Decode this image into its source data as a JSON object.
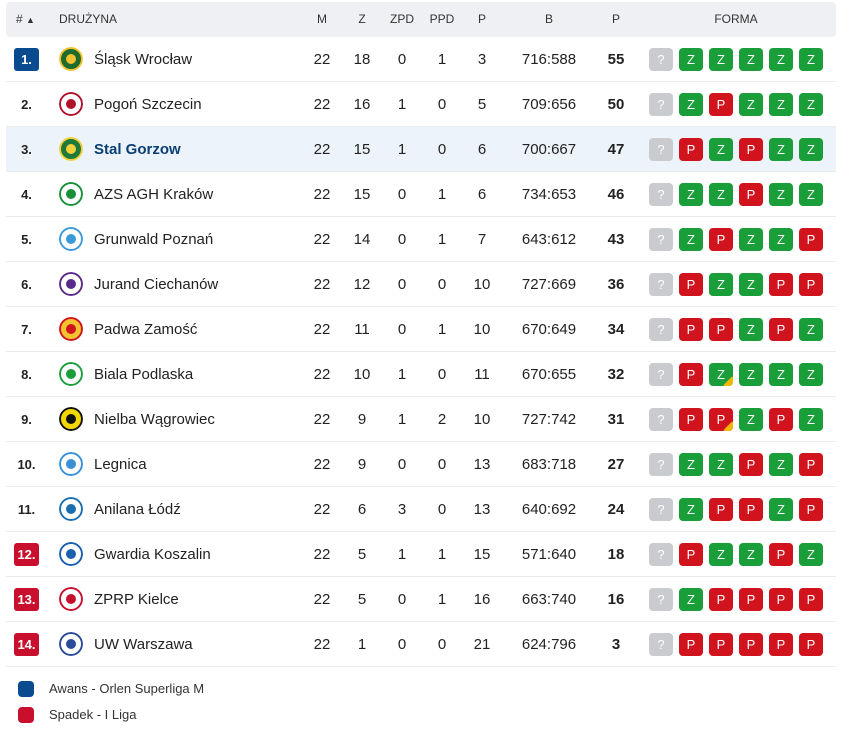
{
  "header": {
    "rank": "#",
    "sort_icon": "▲",
    "team": "DRUŻYNA",
    "m": "M",
    "z": "Z",
    "zpd": "ZPD",
    "ppd": "PPD",
    "p": "P",
    "b": "B",
    "pts": "P",
    "forma": "FORMA"
  },
  "colors": {
    "promotion": "#0a4a8f",
    "relegation": "#c8102e",
    "win": "#1a9e3a",
    "loss": "#d1131e",
    "unknown": "#c9cbce"
  },
  "rows": [
    {
      "rank": "1.",
      "team": "Śląsk Wrocław",
      "m": "22",
      "z": "18",
      "zpd": "0",
      "ppd": "1",
      "p": "3",
      "b": "716:588",
      "pts": "55",
      "form": [
        "?",
        "Z",
        "Z",
        "Z",
        "Z",
        "Z"
      ],
      "rank_type": "blue",
      "logo": "slask-logo"
    },
    {
      "rank": "2.",
      "team": "Pogoń Szczecin",
      "m": "22",
      "z": "16",
      "zpd": "1",
      "ppd": "0",
      "p": "5",
      "b": "709:656",
      "pts": "50",
      "form": [
        "?",
        "Z",
        "P",
        "Z",
        "Z",
        "Z"
      ],
      "rank_type": "",
      "logo": "pogon-logo"
    },
    {
      "rank": "3.",
      "team": "Stal Gorzow",
      "m": "22",
      "z": "15",
      "zpd": "1",
      "ppd": "0",
      "p": "6",
      "b": "700:667",
      "pts": "47",
      "form": [
        "?",
        "P",
        "Z",
        "P",
        "Z",
        "Z"
      ],
      "rank_type": "",
      "logo": "stal-logo",
      "highlight": true
    },
    {
      "rank": "4.",
      "team": "AZS AGH Kraków",
      "m": "22",
      "z": "15",
      "zpd": "0",
      "ppd": "1",
      "p": "6",
      "b": "734:653",
      "pts": "46",
      "form": [
        "?",
        "Z",
        "Z",
        "P",
        "Z",
        "Z"
      ],
      "rank_type": "",
      "logo": "azs-agh-logo"
    },
    {
      "rank": "5.",
      "team": "Grunwald Poznań",
      "m": "22",
      "z": "14",
      "zpd": "0",
      "ppd": "1",
      "p": "7",
      "b": "643:612",
      "pts": "43",
      "form": [
        "?",
        "Z",
        "P",
        "Z",
        "Z",
        "P"
      ],
      "rank_type": "",
      "logo": "grunwald-logo"
    },
    {
      "rank": "6.",
      "team": "Jurand Ciechanów",
      "m": "22",
      "z": "12",
      "zpd": "0",
      "ppd": "0",
      "p": "10",
      "b": "727:669",
      "pts": "36",
      "form": [
        "?",
        "P",
        "Z",
        "Z",
        "P",
        "P"
      ],
      "rank_type": "",
      "logo": "jurand-logo"
    },
    {
      "rank": "7.",
      "team": "Padwa Zamość",
      "m": "22",
      "z": "11",
      "zpd": "0",
      "ppd": "1",
      "p": "10",
      "b": "670:649",
      "pts": "34",
      "form": [
        "?",
        "P",
        "P",
        "Z",
        "P",
        "Z"
      ],
      "rank_type": "",
      "logo": "padwa-logo"
    },
    {
      "rank": "8.",
      "team": "Biala Podlaska",
      "m": "22",
      "z": "10",
      "zpd": "1",
      "ppd": "0",
      "p": "11",
      "b": "670:655",
      "pts": "32",
      "form": [
        "?",
        "P",
        "Z",
        "Z",
        "Z",
        "Z"
      ],
      "rank_type": "",
      "logo": "biala-logo",
      "marked": 2
    },
    {
      "rank": "9.",
      "team": "Nielba Wągrowiec",
      "m": "22",
      "z": "9",
      "zpd": "1",
      "ppd": "2",
      "p": "10",
      "b": "727:742",
      "pts": "31",
      "form": [
        "?",
        "P",
        "P",
        "Z",
        "P",
        "Z"
      ],
      "rank_type": "",
      "logo": "nielba-logo",
      "marked": 2
    },
    {
      "rank": "10.",
      "team": "Legnica",
      "m": "22",
      "z": "9",
      "zpd": "0",
      "ppd": "0",
      "p": "13",
      "b": "683:718",
      "pts": "27",
      "form": [
        "?",
        "Z",
        "Z",
        "P",
        "Z",
        "P"
      ],
      "rank_type": "",
      "logo": "legnica-logo"
    },
    {
      "rank": "11.",
      "team": "Anilana Łódź",
      "m": "22",
      "z": "6",
      "zpd": "3",
      "ppd": "0",
      "p": "13",
      "b": "640:692",
      "pts": "24",
      "form": [
        "?",
        "Z",
        "P",
        "P",
        "Z",
        "P"
      ],
      "rank_type": "",
      "logo": "anilana-logo"
    },
    {
      "rank": "12.",
      "team": "Gwardia Koszalin",
      "m": "22",
      "z": "5",
      "zpd": "1",
      "ppd": "1",
      "p": "15",
      "b": "571:640",
      "pts": "18",
      "form": [
        "?",
        "P",
        "Z",
        "Z",
        "P",
        "Z"
      ],
      "rank_type": "red",
      "logo": "gwardia-logo"
    },
    {
      "rank": "13.",
      "team": "ZPRP Kielce",
      "m": "22",
      "z": "5",
      "zpd": "0",
      "ppd": "1",
      "p": "16",
      "b": "663:740",
      "pts": "16",
      "form": [
        "?",
        "Z",
        "P",
        "P",
        "P",
        "P"
      ],
      "rank_type": "red",
      "logo": "zprp-logo"
    },
    {
      "rank": "14.",
      "team": "UW Warszawa",
      "m": "22",
      "z": "1",
      "zpd": "0",
      "ppd": "0",
      "p": "21",
      "b": "624:796",
      "pts": "3",
      "form": [
        "?",
        "P",
        "P",
        "P",
        "P",
        "P"
      ],
      "rank_type": "red",
      "logo": "uw-logo"
    }
  ],
  "legend": [
    {
      "label": "Awans - Orlen Superliga M",
      "type": "blue"
    },
    {
      "label": "Spadek - I Liga",
      "type": "red"
    }
  ]
}
